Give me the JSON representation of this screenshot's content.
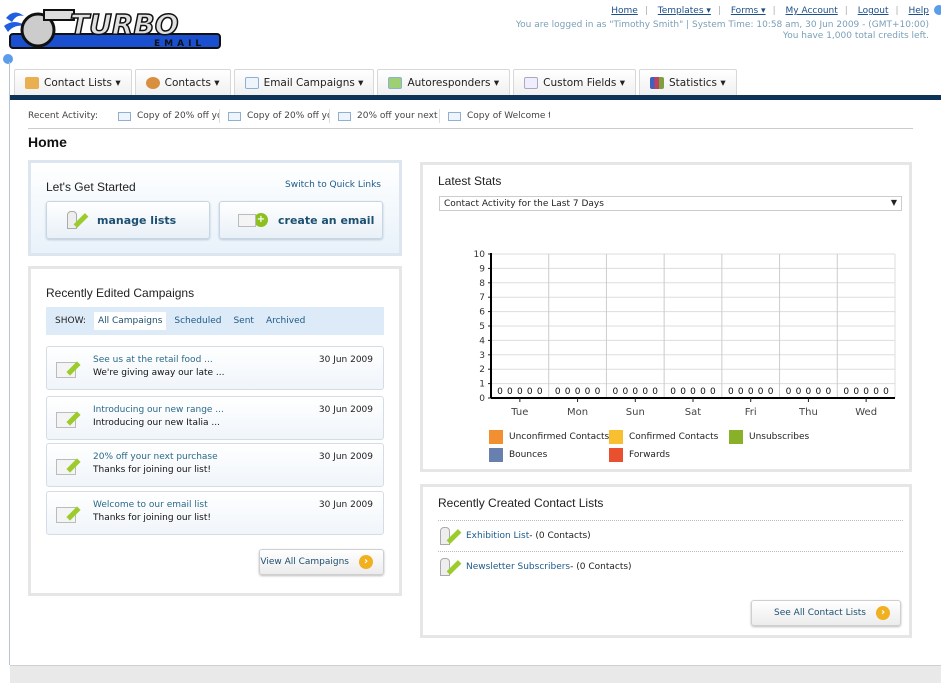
{
  "logo": {
    "text": "TURBO",
    "subtext": "EMAIL"
  },
  "header": {
    "links": [
      {
        "label": "Home"
      },
      {
        "label": "Templates ▾"
      },
      {
        "label": "Forms ▾"
      },
      {
        "label": "My Account"
      },
      {
        "label": "Logout"
      },
      {
        "label": "Help"
      }
    ],
    "login_info": "You are logged in as \"Timothy Smith\" | System Time: 10:58 am, 30 Jun 2009 - (GMT+10:00)",
    "credits": "You have 1,000 total credits left."
  },
  "tabs": [
    {
      "label": "Contact Lists ▾",
      "icon": "contact-lists-icon",
      "color": "#e8b050"
    },
    {
      "label": "Contacts ▾",
      "icon": "contacts-icon",
      "color": "#d89040"
    },
    {
      "label": "Email Campaigns ▾",
      "icon": "envelope-icon",
      "color": "#a8c8e8"
    },
    {
      "label": "Autoresponders ▾",
      "icon": "autoresponder-icon",
      "color": "#60a040"
    },
    {
      "label": "Custom Fields ▾",
      "icon": "custom-fields-icon",
      "color": "#c8d0d8"
    },
    {
      "label": "Statistics ▾",
      "icon": "statistics-icon",
      "color": "#c04060"
    }
  ],
  "recent_activity": {
    "label": "Recent Activity:",
    "items": [
      "Copy of 20% off yo",
      "Copy of 20% off yo",
      "20% off your next p",
      "Copy of Welcome to"
    ]
  },
  "page_title": "Home",
  "get_started": {
    "title": "Let's Get Started",
    "switch_link": "Switch to Quick Links",
    "manage_lists": "manage lists",
    "create_email": "create an email"
  },
  "campaigns": {
    "title": "Recently Edited Campaigns",
    "show_label": "SHOW:",
    "filters": [
      "All Campaigns",
      "Scheduled",
      "Sent",
      "Archived"
    ],
    "active_filter": "All Campaigns",
    "items": [
      {
        "title": "See us at the retail food ...",
        "subtitle": "We're giving away our late ...",
        "date": "30 Jun 2009"
      },
      {
        "title": "Introducing our new range ...",
        "subtitle": "Introducing our new Italia ...",
        "date": "30 Jun 2009"
      },
      {
        "title": "20% off your next purchase",
        "subtitle": "Thanks for joining our list!",
        "date": "30 Jun 2009"
      },
      {
        "title": "Welcome to our email list",
        "subtitle": "Thanks for joining our list!",
        "date": "30 Jun 2009"
      }
    ],
    "view_all": "View All Campaigns"
  },
  "stats": {
    "title": "Latest Stats",
    "select_value": "Contact Activity for the Last 7 Days"
  },
  "chart_data": {
    "type": "bar",
    "categories": [
      "Tue",
      "Mon",
      "Sun",
      "Sat",
      "Fri",
      "Thu",
      "Wed"
    ],
    "ylim": [
      0,
      10
    ],
    "yticks": [
      0,
      1,
      2,
      3,
      4,
      5,
      6,
      7,
      8,
      9,
      10
    ],
    "grid": true,
    "legend_placement": "bottom",
    "series": [
      {
        "name": "Unconfirmed Contacts",
        "color": "#f09030",
        "values": [
          0,
          0,
          0,
          0,
          0,
          0,
          0
        ]
      },
      {
        "name": "Confirmed Contacts",
        "color": "#f8c030",
        "values": [
          0,
          0,
          0,
          0,
          0,
          0,
          0
        ]
      },
      {
        "name": "Unsubscribes",
        "color": "#88b028",
        "values": [
          0,
          0,
          0,
          0,
          0,
          0,
          0
        ]
      },
      {
        "name": "Bounces",
        "color": "#6880b0",
        "values": [
          0,
          0,
          0,
          0,
          0,
          0,
          0
        ]
      },
      {
        "name": "Forwards",
        "color": "#e85030",
        "values": [
          0,
          0,
          0,
          0,
          0,
          0,
          0
        ]
      }
    ]
  },
  "contact_lists": {
    "title": "Recently Created Contact Lists",
    "items": [
      {
        "name": "Exhibition List",
        "count": " - (0 Contacts)"
      },
      {
        "name": "Newsletter Subscribers",
        "count": " - (0 Contacts)"
      }
    ],
    "see_all": "See All Contact Lists"
  }
}
